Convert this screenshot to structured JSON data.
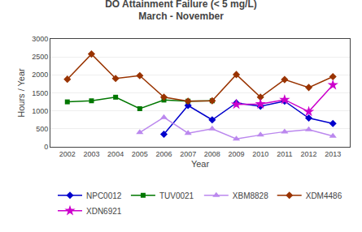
{
  "chart_data": {
    "type": "line",
    "title": "DO Attainment Failure (< 5 mg/L)",
    "subtitle": "March - November",
    "x_label": "Year",
    "y_label": "Hours / Year",
    "x": [
      2002,
      2003,
      2004,
      2005,
      2006,
      2007,
      2008,
      2009,
      2010,
      2011,
      2012,
      2013
    ],
    "xlim": [
      2001.3,
      2013.7
    ],
    "xticks": [
      2002,
      2003,
      2004,
      2005,
      2006,
      2007,
      2008,
      2009,
      2010,
      2011,
      2012,
      2013
    ],
    "ylim": [
      0,
      3000
    ],
    "yticks": [
      0,
      500,
      1000,
      1500,
      2000,
      2500,
      3000
    ],
    "grid": "y",
    "legend": "bottom",
    "series": [
      {
        "name": "NPC0012",
        "color": "#0000CC",
        "marker": "diamond",
        "values": [
          null,
          null,
          null,
          null,
          350,
          1150,
          750,
          1220,
          1130,
          1270,
          800,
          650
        ]
      },
      {
        "name": "TUV0021",
        "color": "#007700",
        "marker": "square",
        "values": [
          1250,
          1280,
          1380,
          1060,
          1300,
          1270,
          1280,
          null,
          null,
          null,
          null,
          null
        ]
      },
      {
        "name": "XBM8828",
        "color": "#BB88EE",
        "marker": "triangle-up",
        "values": [
          null,
          null,
          null,
          400,
          820,
          380,
          500,
          220,
          330,
          420,
          480,
          300
        ]
      },
      {
        "name": "XDM4486",
        "color": "#993300",
        "marker": "diamond",
        "values": [
          1880,
          2580,
          1900,
          1980,
          1380,
          1270,
          1280,
          2010,
          1380,
          1870,
          1650,
          1950
        ]
      },
      {
        "name": "XDN6921",
        "color": "#CC00CC",
        "marker": "star",
        "values": [
          null,
          null,
          null,
          null,
          null,
          null,
          null,
          1180,
          1190,
          1310,
          980,
          1720
        ]
      }
    ]
  }
}
